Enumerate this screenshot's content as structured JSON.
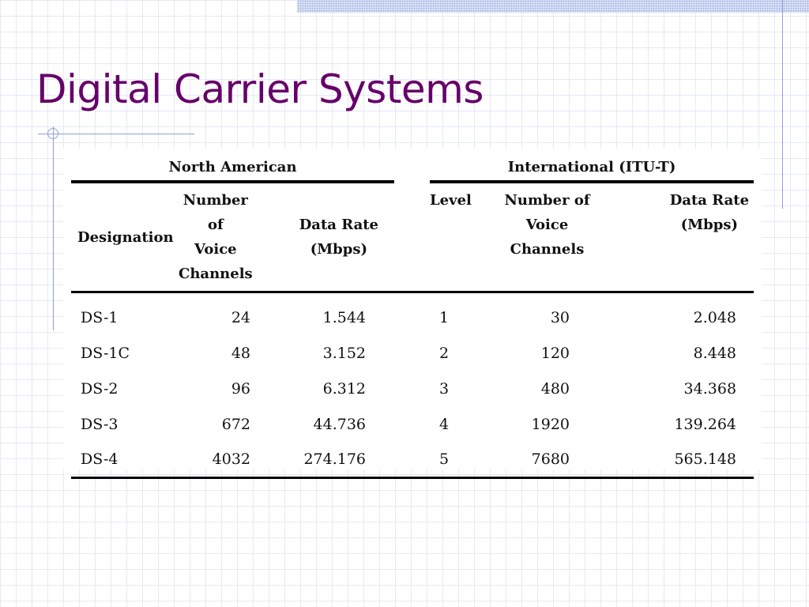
{
  "slide": {
    "title": "Digital Carrier Systems"
  },
  "table": {
    "groups": {
      "north_american": "North American",
      "international": "International (ITU-T)"
    },
    "headers": {
      "designation": "Designation",
      "na_channels": [
        "Number of",
        "Voice",
        "Channels"
      ],
      "na_rate": [
        "Data Rate",
        "(Mbps)"
      ],
      "level": "Level",
      "itu_channels": [
        "Number of",
        "Voice",
        "Channels"
      ],
      "itu_rate": [
        "Data Rate",
        "(Mbps)"
      ]
    },
    "rows": [
      [
        "DS-1",
        "24",
        "1.544",
        "1",
        "30",
        "2.048"
      ],
      [
        "DS-1C",
        "48",
        "3.152",
        "2",
        "120",
        "8.448"
      ],
      [
        "DS-2",
        "96",
        "6.312",
        "3",
        "480",
        "34.368"
      ],
      [
        "DS-3",
        "672",
        "44.736",
        "4",
        "1920",
        "139.264"
      ],
      [
        "DS-4",
        "4032",
        "274.176",
        "5",
        "7680",
        "565.148"
      ]
    ]
  },
  "theme": {
    "title_color": "#66006a",
    "grid_color": "#e6e9f6",
    "accent_line_color": "#8ea0dd"
  }
}
